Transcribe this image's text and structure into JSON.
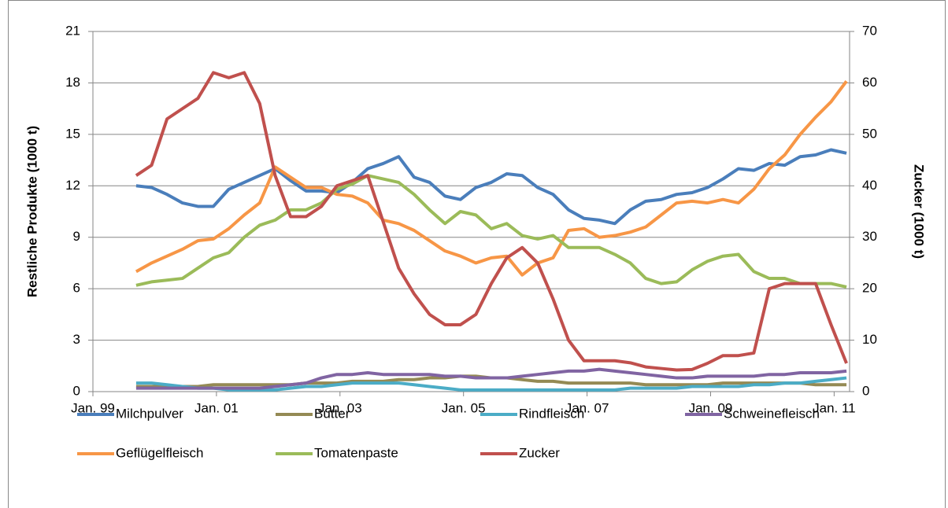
{
  "chart_data": {
    "type": "line",
    "x": [
      1999.7,
      1999.95,
      2000.2,
      2000.45,
      2000.7,
      2000.95,
      2001.2,
      2001.45,
      2001.7,
      2001.95,
      2002.2,
      2002.45,
      2002.7,
      2002.95,
      2003.2,
      2003.45,
      2003.7,
      2003.95,
      2004.2,
      2004.45,
      2004.7,
      2004.95,
      2005.2,
      2005.45,
      2005.7,
      2005.95,
      2006.2,
      2006.45,
      2006.7,
      2006.95,
      2007.2,
      2007.45,
      2007.7,
      2007.95,
      2008.2,
      2008.45,
      2008.7,
      2008.95,
      2009.2,
      2009.45,
      2009.7,
      2009.95,
      2010.2,
      2010.45,
      2010.7,
      2010.95,
      2011.2
    ],
    "xlim": [
      1999,
      2011.25
    ],
    "xticks": [
      {
        "value": 1999,
        "label": "Jan. 99"
      },
      {
        "value": 2001,
        "label": "Jan. 01"
      },
      {
        "value": 2003,
        "label": "Jan. 03"
      },
      {
        "value": 2005,
        "label": "Jan. 05"
      },
      {
        "value": 2007,
        "label": "Jan. 07"
      },
      {
        "value": 2009,
        "label": "Jan. 09"
      },
      {
        "value": 2011,
        "label": "Jan. 11"
      }
    ],
    "ylabel": "Restliche Produkte (1000 t)",
    "y2label": "Zucker (1000 t)",
    "ylim": [
      0,
      21
    ],
    "yticks": [
      0,
      3,
      6,
      9,
      12,
      15,
      18,
      21
    ],
    "y2lim": [
      0,
      70
    ],
    "y2ticks": [
      0,
      10,
      20,
      30,
      40,
      50,
      60,
      70
    ],
    "grid": true,
    "legend": "bottom",
    "series": [
      {
        "name": "Milchpulver",
        "color": "#4a7ebb",
        "values": [
          12.0,
          11.9,
          11.5,
          11.0,
          10.8,
          10.8,
          11.8,
          12.2,
          12.6,
          13.0,
          12.3,
          11.7,
          11.7,
          11.6,
          12.2,
          13.0,
          13.3,
          13.7,
          12.5,
          12.2,
          11.4,
          11.2,
          11.9,
          12.2,
          12.7,
          12.6,
          11.9,
          11.5,
          10.6,
          10.1,
          10.0,
          9.8,
          10.6,
          11.1,
          11.2,
          11.5,
          11.6,
          11.9,
          12.4,
          13.0,
          12.9,
          13.3,
          13.2,
          13.7,
          13.8,
          14.1,
          13.9
        ]
      },
      {
        "name": "Butter",
        "color": "#948a54",
        "values": [
          0.3,
          0.3,
          0.3,
          0.3,
          0.3,
          0.4,
          0.4,
          0.4,
          0.4,
          0.4,
          0.4,
          0.5,
          0.5,
          0.5,
          0.6,
          0.6,
          0.6,
          0.7,
          0.7,
          0.8,
          0.8,
          0.9,
          0.9,
          0.8,
          0.8,
          0.7,
          0.6,
          0.6,
          0.5,
          0.5,
          0.5,
          0.5,
          0.5,
          0.4,
          0.4,
          0.4,
          0.4,
          0.4,
          0.5,
          0.5,
          0.5,
          0.5,
          0.5,
          0.5,
          0.4,
          0.4,
          0.4
        ]
      },
      {
        "name": "Rindfleisch",
        "color": "#4bacc6",
        "values": [
          0.5,
          0.5,
          0.4,
          0.3,
          0.2,
          0.2,
          0.1,
          0.1,
          0.1,
          0.1,
          0.2,
          0.3,
          0.3,
          0.4,
          0.5,
          0.5,
          0.5,
          0.5,
          0.4,
          0.3,
          0.2,
          0.1,
          0.1,
          0.1,
          0.1,
          0.1,
          0.1,
          0.1,
          0.1,
          0.1,
          0.1,
          0.1,
          0.2,
          0.2,
          0.2,
          0.2,
          0.3,
          0.3,
          0.3,
          0.3,
          0.4,
          0.4,
          0.5,
          0.5,
          0.6,
          0.7,
          0.8
        ]
      },
      {
        "name": "Schweinefleisch",
        "color": "#8064a2",
        "values": [
          0.2,
          0.2,
          0.2,
          0.2,
          0.2,
          0.2,
          0.2,
          0.2,
          0.2,
          0.3,
          0.4,
          0.5,
          0.8,
          1.0,
          1.0,
          1.1,
          1.0,
          1.0,
          1.0,
          1.0,
          0.9,
          0.9,
          0.8,
          0.8,
          0.8,
          0.9,
          1.0,
          1.1,
          1.2,
          1.2,
          1.3,
          1.2,
          1.1,
          1.0,
          0.9,
          0.8,
          0.8,
          0.9,
          0.9,
          0.9,
          0.9,
          1.0,
          1.0,
          1.1,
          1.1,
          1.1,
          1.2
        ]
      },
      {
        "name": "Geflügelfleisch",
        "color": "#f79646",
        "values": [
          7.0,
          7.5,
          7.9,
          8.3,
          8.8,
          8.9,
          9.5,
          10.3,
          11.0,
          13.1,
          12.5,
          11.9,
          11.9,
          11.5,
          11.4,
          11.0,
          10.0,
          9.8,
          9.4,
          8.8,
          8.2,
          7.9,
          7.5,
          7.8,
          7.9,
          6.8,
          7.5,
          7.8,
          9.4,
          9.5,
          9.0,
          9.1,
          9.3,
          9.6,
          10.3,
          11.0,
          11.1,
          11.0,
          11.2,
          11.0,
          11.8,
          13.0,
          13.8,
          15.0,
          16.0,
          16.9,
          18.1
        ]
      },
      {
        "name": "Tomatenpaste",
        "color": "#9bbb59",
        "values": [
          6.2,
          6.4,
          6.5,
          6.6,
          7.2,
          7.8,
          8.1,
          9.0,
          9.7,
          10.0,
          10.6,
          10.6,
          11.0,
          11.8,
          12.1,
          12.6,
          12.4,
          12.2,
          11.5,
          10.6,
          9.8,
          10.5,
          10.3,
          9.5,
          9.8,
          9.1,
          8.9,
          9.1,
          8.4,
          8.4,
          8.4,
          8.0,
          7.5,
          6.6,
          6.3,
          6.4,
          7.1,
          7.6,
          7.9,
          8.0,
          7.0,
          6.6,
          6.6,
          6.3,
          6.3,
          6.3,
          6.1
        ]
      },
      {
        "name": "Zucker",
        "color": "#c0504d",
        "axis": "y2",
        "values": [
          42,
          44,
          53,
          55,
          57,
          62,
          61,
          62,
          56,
          42,
          34,
          34,
          36,
          40,
          41,
          42,
          33,
          24,
          19,
          15,
          13,
          13,
          15,
          21,
          26,
          28,
          25,
          18,
          10,
          6,
          6,
          6,
          5.6,
          4.8,
          4.5,
          4.2,
          4.3,
          5.5,
          7,
          7,
          7.5,
          20,
          21,
          21,
          21,
          13,
          5.5
        ]
      }
    ]
  }
}
